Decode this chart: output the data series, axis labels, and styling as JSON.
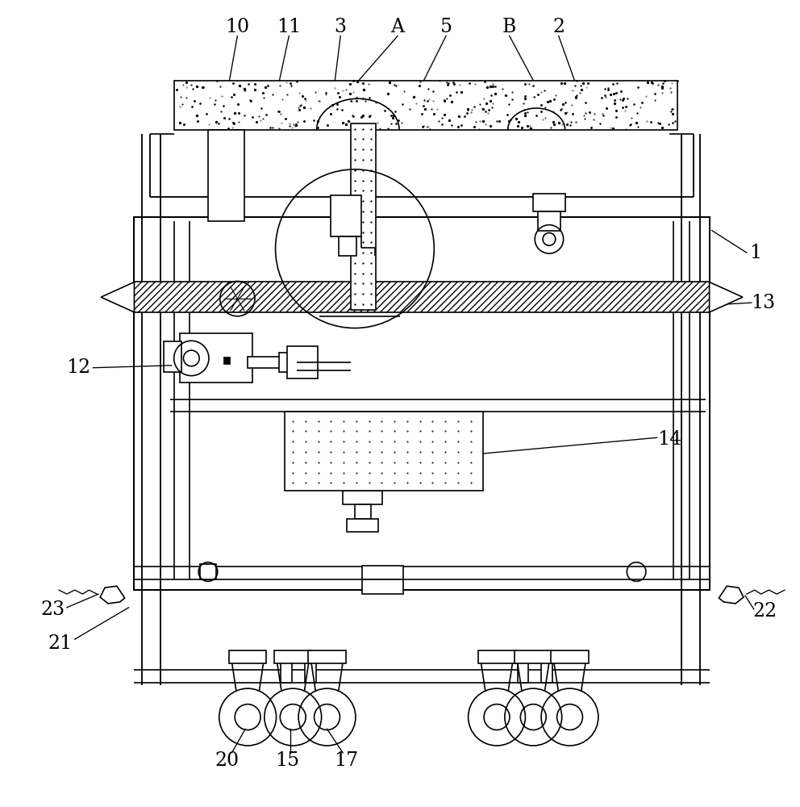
{
  "bg_color": "#ffffff",
  "line_color": "#000000",
  "lw": 1.2
}
